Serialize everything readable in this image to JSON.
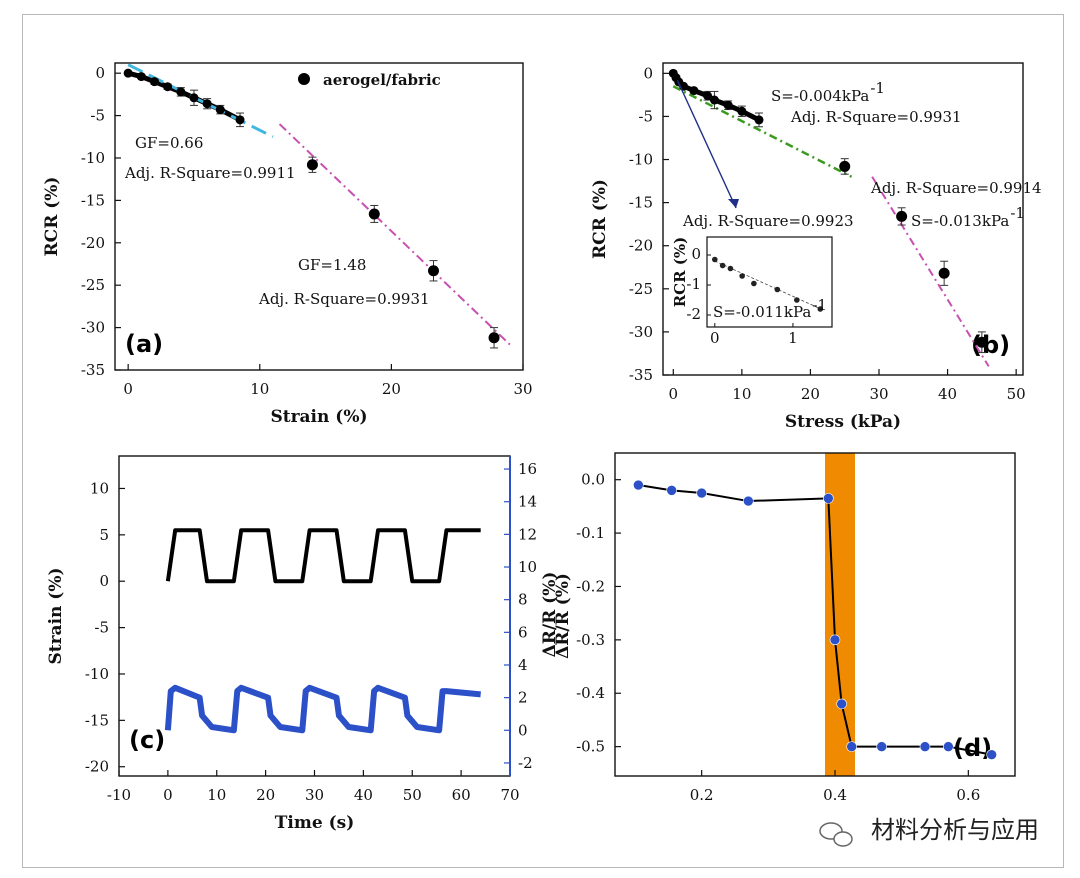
{
  "colors": {
    "black": "#000000",
    "cyan": "#41b6e0",
    "magenta": "#c850b0",
    "green": "#3a9a20",
    "navy": "#1f2f8a",
    "blue": "#2b50c8",
    "orange": "#f08a00",
    "inset_blue": "#2040c0"
  },
  "watermark": "材料分析与应用",
  "chart_data": [
    {
      "id": "a",
      "type": "scatter",
      "panel_label": "(a)",
      "xlabel": "Strain (%)",
      "ylabel": "RCR (%)",
      "xlim": [
        -1,
        30
      ],
      "ylim": [
        -35,
        1.2
      ],
      "xticks": [
        0,
        10,
        20,
        30
      ],
      "yticks": [
        0,
        -5,
        -10,
        -15,
        -20,
        -25,
        -30,
        -35
      ],
      "legend": "aerogel/fabric",
      "series": [
        {
          "name": "aerogel/fabric",
          "x": [
            0,
            1,
            2,
            3,
            4,
            5,
            6,
            7,
            8.5,
            14,
            18.7,
            23.2,
            27.8
          ],
          "y": [
            0,
            -0.4,
            -1,
            -1.6,
            -2.2,
            -2.9,
            -3.6,
            -4.3,
            -5.5,
            -10.8,
            -16.6,
            -23.3,
            -31.2
          ],
          "err": [
            0,
            0.2,
            0.3,
            0.3,
            0.5,
            0.9,
            0.6,
            0.5,
            0.8,
            0.9,
            1,
            1.2,
            1.2
          ]
        }
      ],
      "fits": [
        {
          "label": "GF=0.66",
          "r2": "Adj. R-Square=0.9911",
          "x": [
            0,
            11
          ],
          "y": [
            1,
            -7.5
          ],
          "color": "cyan"
        },
        {
          "label": "GF=1.48",
          "r2": "Adj. R-Square=0.9931",
          "x": [
            11.5,
            29
          ],
          "y": [
            -6,
            -32
          ],
          "color": "magenta"
        }
      ]
    },
    {
      "id": "b",
      "type": "scatter",
      "panel_label": "(b)",
      "xlabel": "Stress (kPa)",
      "ylabel": "RCR (%)",
      "xlim": [
        -1.5,
        51
      ],
      "ylim": [
        -35,
        1.2
      ],
      "xticks": [
        0,
        10,
        20,
        30,
        40,
        50
      ],
      "yticks": [
        0,
        -5,
        -10,
        -15,
        -20,
        -25,
        -30,
        -35
      ],
      "series": [
        {
          "name": "aerogel/fabric",
          "x": [
            0,
            0.4,
            0.8,
            1.5,
            3,
            5,
            6,
            8,
            10,
            12.5,
            25,
            33.3,
            39.5,
            45
          ],
          "y": [
            0,
            -0.5,
            -1,
            -1.5,
            -2,
            -2.6,
            -3.1,
            -3.7,
            -4.4,
            -5.4,
            -10.8,
            -16.6,
            -23.2,
            -31.2
          ],
          "err": [
            0,
            0,
            0,
            0,
            0,
            0.5,
            1,
            0.5,
            0.6,
            0.8,
            0.9,
            1,
            1.4,
            1.2
          ]
        }
      ],
      "fits": [
        {
          "label": "S=-0.004kPa",
          "r2": "Adj. R-Square=0.9931",
          "x": [
            0,
            26
          ],
          "y": [
            -1.5,
            -12
          ],
          "color": "green"
        },
        {
          "label": "S=-0.013kPa",
          "r2": "Adj. R-Square=0.9914",
          "x": [
            29,
            46
          ],
          "y": [
            -12,
            -34
          ],
          "color": "magenta"
        }
      ],
      "inset": {
        "label": "S=-0.011kPa",
        "r2": "Adj. R-Square=0.9923",
        "ylabel": "RCR (%)",
        "xlim": [
          -0.1,
          1.5
        ],
        "ylim": [
          -2.4,
          0.6
        ],
        "xticks": [
          0,
          1
        ],
        "yticks": [
          0,
          -1,
          -2
        ],
        "x": [
          0,
          0.1,
          0.2,
          0.35,
          0.5,
          0.8,
          1.05,
          1.35
        ],
        "y": [
          -0.15,
          -0.35,
          -0.45,
          -0.7,
          -0.95,
          -1.15,
          -1.5,
          -1.8
        ]
      }
    },
    {
      "id": "c",
      "type": "line",
      "panel_label": "(c)",
      "xlabel": "Time (s)",
      "ylabel": "Strain (%)",
      "y2label": "ΔR/R (%)",
      "xlim": [
        -10,
        70
      ],
      "ylim": [
        -21,
        13.5
      ],
      "y2lim": [
        -2.8,
        16.8
      ],
      "xticks": [
        -10,
        0,
        10,
        20,
        30,
        40,
        50,
        60,
        70
      ],
      "yticks": [
        10,
        5,
        0,
        -5,
        -10,
        -15,
        -20
      ],
      "y2ticks": [
        16,
        14,
        12,
        10,
        8,
        6,
        4,
        2,
        0,
        -2
      ],
      "series": [
        {
          "name": "Strain",
          "axis": "left",
          "color": "black",
          "x": [
            0,
            1.5,
            6.5,
            8,
            13.5,
            15,
            20.5,
            22,
            27.5,
            29,
            34.5,
            36,
            41.5,
            43,
            48.5,
            50,
            55.5,
            57,
            64
          ],
          "y": [
            0,
            5.5,
            5.5,
            0,
            0,
            5.5,
            5.5,
            0,
            0,
            5.5,
            5.5,
            0,
            0,
            5.5,
            5.5,
            0,
            0,
            5.5,
            5.5
          ]
        },
        {
          "name": "ΔR/R",
          "axis": "right",
          "color": "blue",
          "x": [
            0,
            0.6,
            1.5,
            6.5,
            7,
            9,
            13.5,
            14.2,
            15,
            20.5,
            21,
            23,
            27.5,
            28.2,
            29,
            34.5,
            35,
            37,
            41.5,
            42.2,
            43,
            48.5,
            49,
            51,
            55.5,
            56.2,
            57,
            64
          ],
          "y": [
            0,
            2.4,
            2.6,
            2,
            0.9,
            0.2,
            0,
            2.4,
            2.6,
            2,
            0.9,
            0.2,
            0,
            2.4,
            2.6,
            2,
            0.9,
            0.2,
            0,
            2.4,
            2.6,
            2,
            0.9,
            0.2,
            0,
            2.4,
            2.4,
            2.2
          ]
        }
      ]
    },
    {
      "id": "d",
      "type": "line",
      "panel_label": "(d)",
      "xlabel": "",
      "ylabel": "ΔR/R (%)",
      "xlim": [
        0.07,
        0.67
      ],
      "ylim": [
        -0.555,
        0.05
      ],
      "xticks": [
        0.2,
        0.4,
        0.6
      ],
      "yticks": [
        0,
        -0.1,
        -0.2,
        -0.3,
        -0.4,
        -0.5
      ],
      "ytick_labels": [
        "0.0",
        "-0.1",
        "-0.2",
        "-0.3",
        "-0.4",
        "-0.5"
      ],
      "xtick_labels": [
        "0.2",
        "0.4",
        "0.6"
      ],
      "band": [
        0.385,
        0.43
      ],
      "series": [
        {
          "name": "ΔR/R",
          "color": "blue",
          "x": [
            0.105,
            0.155,
            0.2,
            0.27,
            0.39,
            0.4,
            0.41,
            0.425,
            0.47,
            0.535,
            0.57,
            0.635
          ],
          "y": [
            -0.01,
            -0.02,
            -0.025,
            -0.04,
            -0.035,
            -0.3,
            -0.42,
            -0.5,
            -0.5,
            -0.5,
            -0.5,
            -0.515
          ]
        }
      ]
    }
  ]
}
